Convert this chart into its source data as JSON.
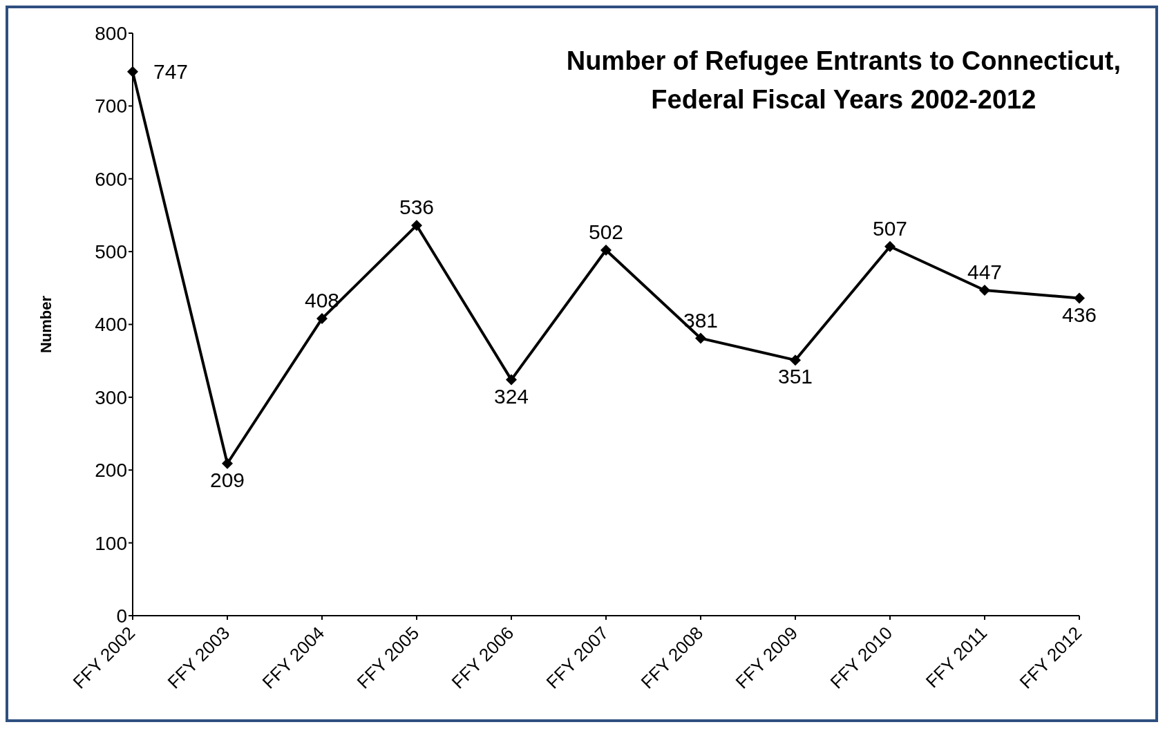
{
  "chart_data": {
    "type": "line",
    "title": "Number of Refugee Entrants to Connecticut,\nFederal Fiscal Years 2002-2012",
    "ylabel": "Number",
    "categories": [
      "FFY 2002",
      "FFY 2003",
      "FFY 2004",
      "FFY 2005",
      "FFY 2006",
      "FFY 2007",
      "FFY 2008",
      "FFY 2009",
      "FFY 2010",
      "FFY 2011",
      "FFY 2012"
    ],
    "series": [
      {
        "color": "#000000",
        "values": [
          747,
          209,
          408,
          536,
          324,
          502,
          381,
          351,
          507,
          447,
          436
        ]
      }
    ],
    "ylim": [
      0,
      800
    ],
    "yticks": [
      0,
      100,
      200,
      300,
      400,
      500,
      600,
      700,
      800
    ],
    "grid": false,
    "legend": false,
    "marker": "diamond",
    "line_style": "solid",
    "data_labels": true
  }
}
